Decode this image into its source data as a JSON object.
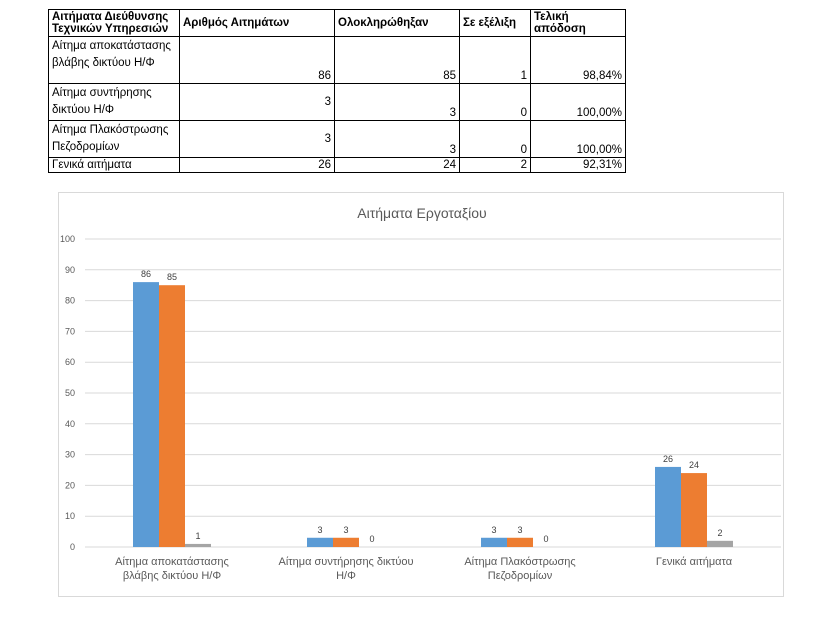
{
  "table": {
    "headers": [
      "Αιτήματα Διεύθυνσης Τεχνικών Υπηρεσιών",
      "Αριθμός Αιτημάτων",
      "Ολοκληρώθηξαν",
      "Σε εξέλιξη",
      "Τελική απόδοση"
    ],
    "rows": [
      [
        "Αίτημα αποκατάστασης βλάβης δικτύου Η/Φ",
        "86",
        "85",
        "1",
        "98,84%"
      ],
      [
        "Αίτημα συντήρησης δικτύου Η/Φ",
        "3",
        "3",
        "0",
        "100,00%"
      ],
      [
        "Αίτημα Πλακόστρωσης Πεζοδρομίων",
        "3",
        "3",
        "0",
        "100,00%"
      ],
      [
        "Γενικά αιτήματα",
        "26",
        "24",
        "2",
        "92,31%"
      ]
    ]
  },
  "chart_data": {
    "type": "bar",
    "title": "Αιτήματα Εργοταξίου",
    "categories": [
      "Αίτημα αποκατάστασης βλάβης δικτύου Η/Φ",
      "Αίτημα συντήρησης δικτύου Η/Φ",
      "Αίτημα Πλακόστρωσης Πεζοδρομίων",
      "Γενικά αιτήματα"
    ],
    "series": [
      {
        "values": [
          86,
          3,
          3,
          26
        ],
        "color": "#5b9bd5"
      },
      {
        "values": [
          85,
          3,
          3,
          24
        ],
        "color": "#ed7d31"
      },
      {
        "values": [
          1,
          0,
          0,
          2
        ],
        "color": "#a5a5a5"
      }
    ],
    "ylim": [
      0,
      100
    ],
    "yticks": [
      0,
      10,
      20,
      30,
      40,
      50,
      60,
      70,
      80,
      90,
      100
    ],
    "grid": true,
    "legend": "none",
    "data_labels": true
  }
}
